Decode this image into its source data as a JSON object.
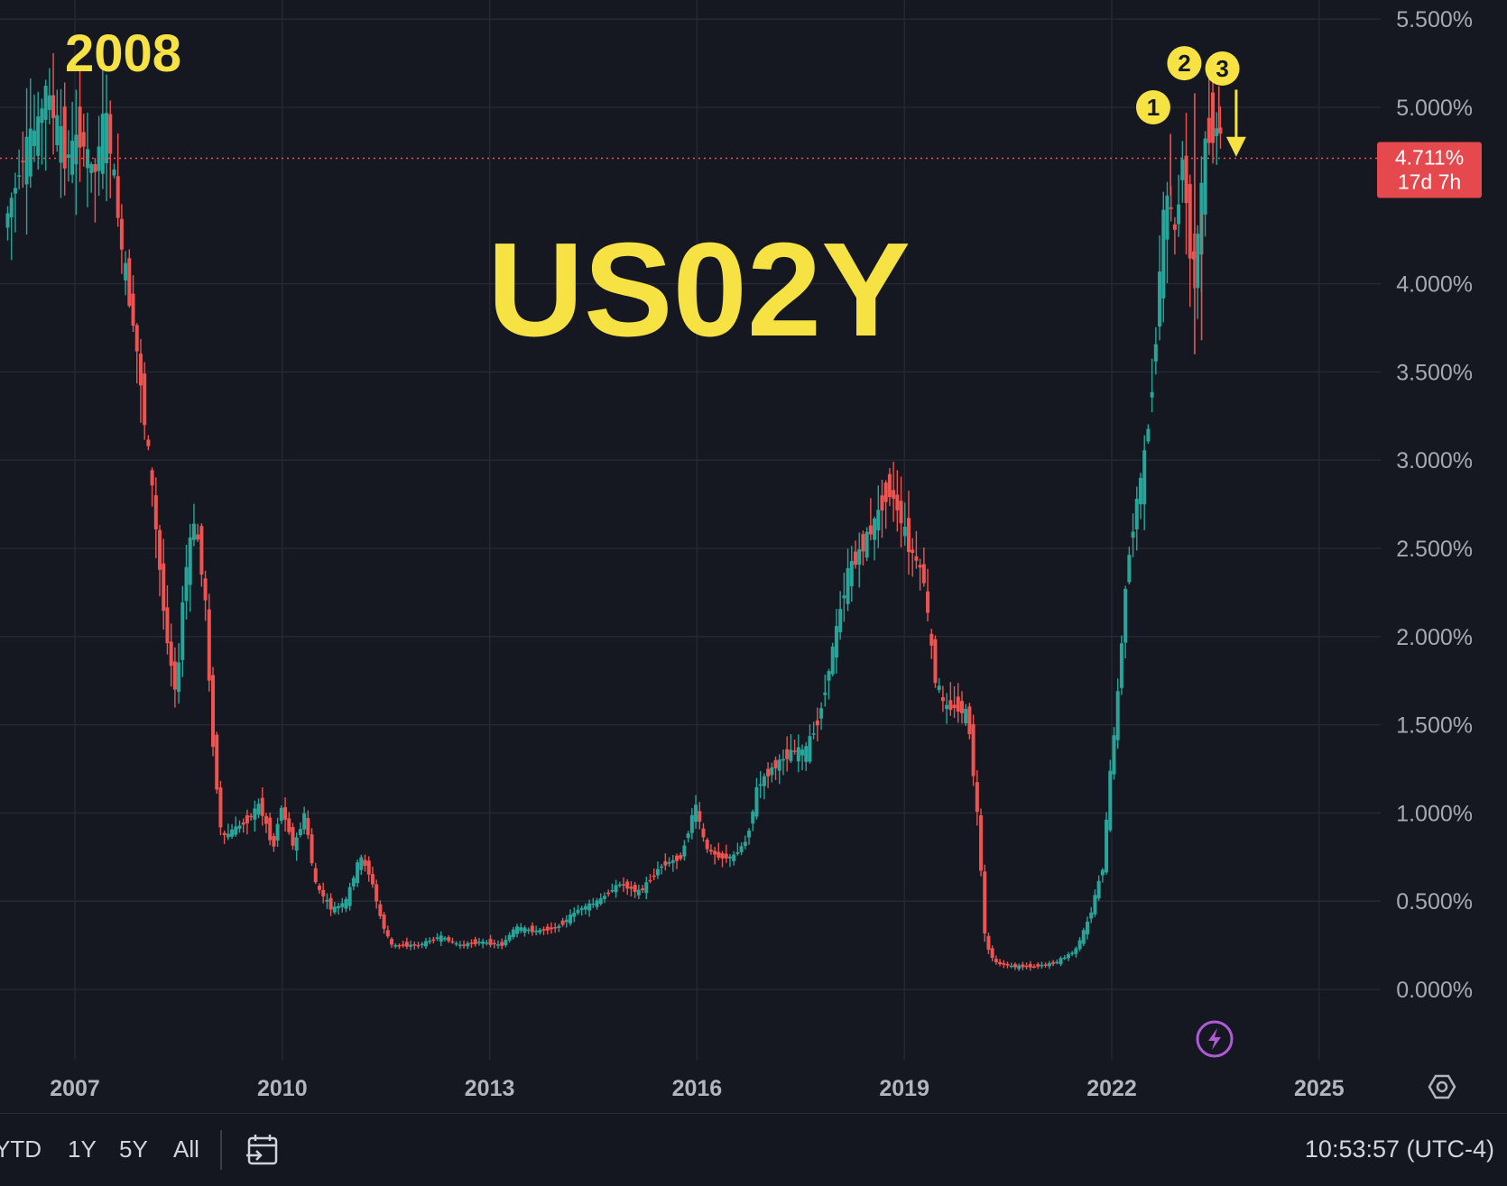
{
  "chart_data": {
    "type": "candlestick",
    "symbol_overlay": "US02Y",
    "annotation_year": "2008",
    "current_price_label": "4.711%",
    "countdown_label": "17d 7h",
    "current_price": 4.711,
    "y_unit": "%",
    "y_range": [
      -0.5,
      5.6
    ],
    "y_ticks": [
      "5.500%",
      "5.000%",
      "4.000%",
      "3.500%",
      "3.000%",
      "2.500%",
      "2.000%",
      "1.500%",
      "1.000%",
      "0.500%",
      "0.000%"
    ],
    "y_tick_values": [
      5.5,
      5.0,
      4.0,
      3.5,
      3.0,
      2.5,
      2.0,
      1.5,
      1.0,
      0.5,
      0.0
    ],
    "x_range": [
      2006.0,
      2026.0
    ],
    "x_ticks": [
      "2007",
      "2010",
      "2013",
      "2016",
      "2019",
      "2022",
      "2025"
    ],
    "x_tick_values": [
      2007,
      2010,
      2013,
      2016,
      2019,
      2022,
      2025
    ],
    "markers": [
      {
        "label": "1",
        "x": 2022.6,
        "y": 5.0
      },
      {
        "label": "2",
        "x": 2023.05,
        "y": 5.25
      },
      {
        "label": "3",
        "x": 2023.6,
        "y": 5.22
      }
    ],
    "arrow": {
      "x": 2023.8,
      "from": 5.1,
      "to": 4.72
    },
    "colors": {
      "up": "#26a69a",
      "down": "#ef5350",
      "marker": "#f7e244",
      "price_tag": "#e5484d"
    },
    "close_path": [
      [
        2006.0,
        4.32
      ],
      [
        2006.3,
        4.75
      ],
      [
        2006.5,
        4.9
      ],
      [
        2006.6,
        5.1
      ],
      [
        2006.8,
        4.85
      ],
      [
        2006.9,
        4.7
      ],
      [
        2007.1,
        4.85
      ],
      [
        2007.3,
        4.6
      ],
      [
        2007.45,
        4.95
      ],
      [
        2007.55,
        4.75
      ],
      [
        2007.7,
        4.2
      ],
      [
        2007.9,
        3.7
      ],
      [
        2008.1,
        3.0
      ],
      [
        2008.2,
        2.6
      ],
      [
        2008.35,
        2.0
      ],
      [
        2008.5,
        1.65
      ],
      [
        2008.6,
        2.3
      ],
      [
        2008.75,
        2.65
      ],
      [
        2008.9,
        2.3
      ],
      [
        2009.0,
        1.5
      ],
      [
        2009.15,
        0.85
      ],
      [
        2009.3,
        0.9
      ],
      [
        2009.5,
        0.95
      ],
      [
        2009.7,
        1.05
      ],
      [
        2009.9,
        0.8
      ],
      [
        2010.0,
        1.05
      ],
      [
        2010.2,
        0.8
      ],
      [
        2010.35,
        1.0
      ],
      [
        2010.5,
        0.6
      ],
      [
        2010.75,
        0.45
      ],
      [
        2010.95,
        0.5
      ],
      [
        2011.15,
        0.75
      ],
      [
        2011.3,
        0.65
      ],
      [
        2011.45,
        0.4
      ],
      [
        2011.6,
        0.25
      ],
      [
        2011.8,
        0.25
      ],
      [
        2012.0,
        0.25
      ],
      [
        2012.3,
        0.3
      ],
      [
        2012.6,
        0.25
      ],
      [
        2012.9,
        0.27
      ],
      [
        2013.2,
        0.25
      ],
      [
        2013.4,
        0.35
      ],
      [
        2013.7,
        0.33
      ],
      [
        2014.0,
        0.35
      ],
      [
        2014.3,
        0.45
      ],
      [
        2014.6,
        0.5
      ],
      [
        2014.9,
        0.6
      ],
      [
        2015.2,
        0.55
      ],
      [
        2015.5,
        0.7
      ],
      [
        2015.8,
        0.75
      ],
      [
        2016.0,
        1.05
      ],
      [
        2016.15,
        0.8
      ],
      [
        2016.35,
        0.75
      ],
      [
        2016.55,
        0.75
      ],
      [
        2016.75,
        0.85
      ],
      [
        2016.9,
        1.15
      ],
      [
        2017.1,
        1.25
      ],
      [
        2017.4,
        1.35
      ],
      [
        2017.6,
        1.35
      ],
      [
        2017.8,
        1.55
      ],
      [
        2018.0,
        1.95
      ],
      [
        2018.2,
        2.35
      ],
      [
        2018.4,
        2.5
      ],
      [
        2018.6,
        2.65
      ],
      [
        2018.8,
        2.85
      ],
      [
        2018.95,
        2.7
      ],
      [
        2019.1,
        2.5
      ],
      [
        2019.3,
        2.35
      ],
      [
        2019.45,
        1.8
      ],
      [
        2019.6,
        1.6
      ],
      [
        2019.8,
        1.6
      ],
      [
        2019.95,
        1.55
      ],
      [
        2020.1,
        0.9
      ],
      [
        2020.2,
        0.25
      ],
      [
        2020.35,
        0.15
      ],
      [
        2020.6,
        0.13
      ],
      [
        2020.9,
        0.13
      ],
      [
        2021.2,
        0.15
      ],
      [
        2021.5,
        0.22
      ],
      [
        2021.7,
        0.4
      ],
      [
        2021.9,
        0.7
      ],
      [
        2022.0,
        1.2
      ],
      [
        2022.1,
        1.6
      ],
      [
        2022.25,
        2.4
      ],
      [
        2022.4,
        2.8
      ],
      [
        2022.5,
        3.0
      ],
      [
        2022.65,
        3.6
      ],
      [
        2022.75,
        4.3
      ],
      [
        2022.85,
        4.5
      ],
      [
        2022.95,
        4.25
      ],
      [
        2023.05,
        4.75
      ],
      [
        2023.15,
        4.2
      ],
      [
        2023.25,
        4.1
      ],
      [
        2023.35,
        4.7
      ],
      [
        2023.45,
        4.9
      ],
      [
        2023.55,
        4.86
      ]
    ],
    "spike_highs": [
      [
        2022.85,
        4.85
      ],
      [
        2023.2,
        5.08
      ],
      [
        2023.55,
        5.12
      ]
    ],
    "spike_lows": [
      [
        2023.2,
        3.6
      ],
      [
        2023.3,
        3.68
      ]
    ]
  },
  "bottom_bar": {
    "ranges": [
      "YTD",
      "1Y",
      "5Y",
      "All"
    ],
    "time": "10:53:57 (UTC-4)"
  },
  "icons": {
    "settings": "gear-icon",
    "goto_date": "calendar-goto-icon",
    "lightning": "lightning-icon"
  }
}
